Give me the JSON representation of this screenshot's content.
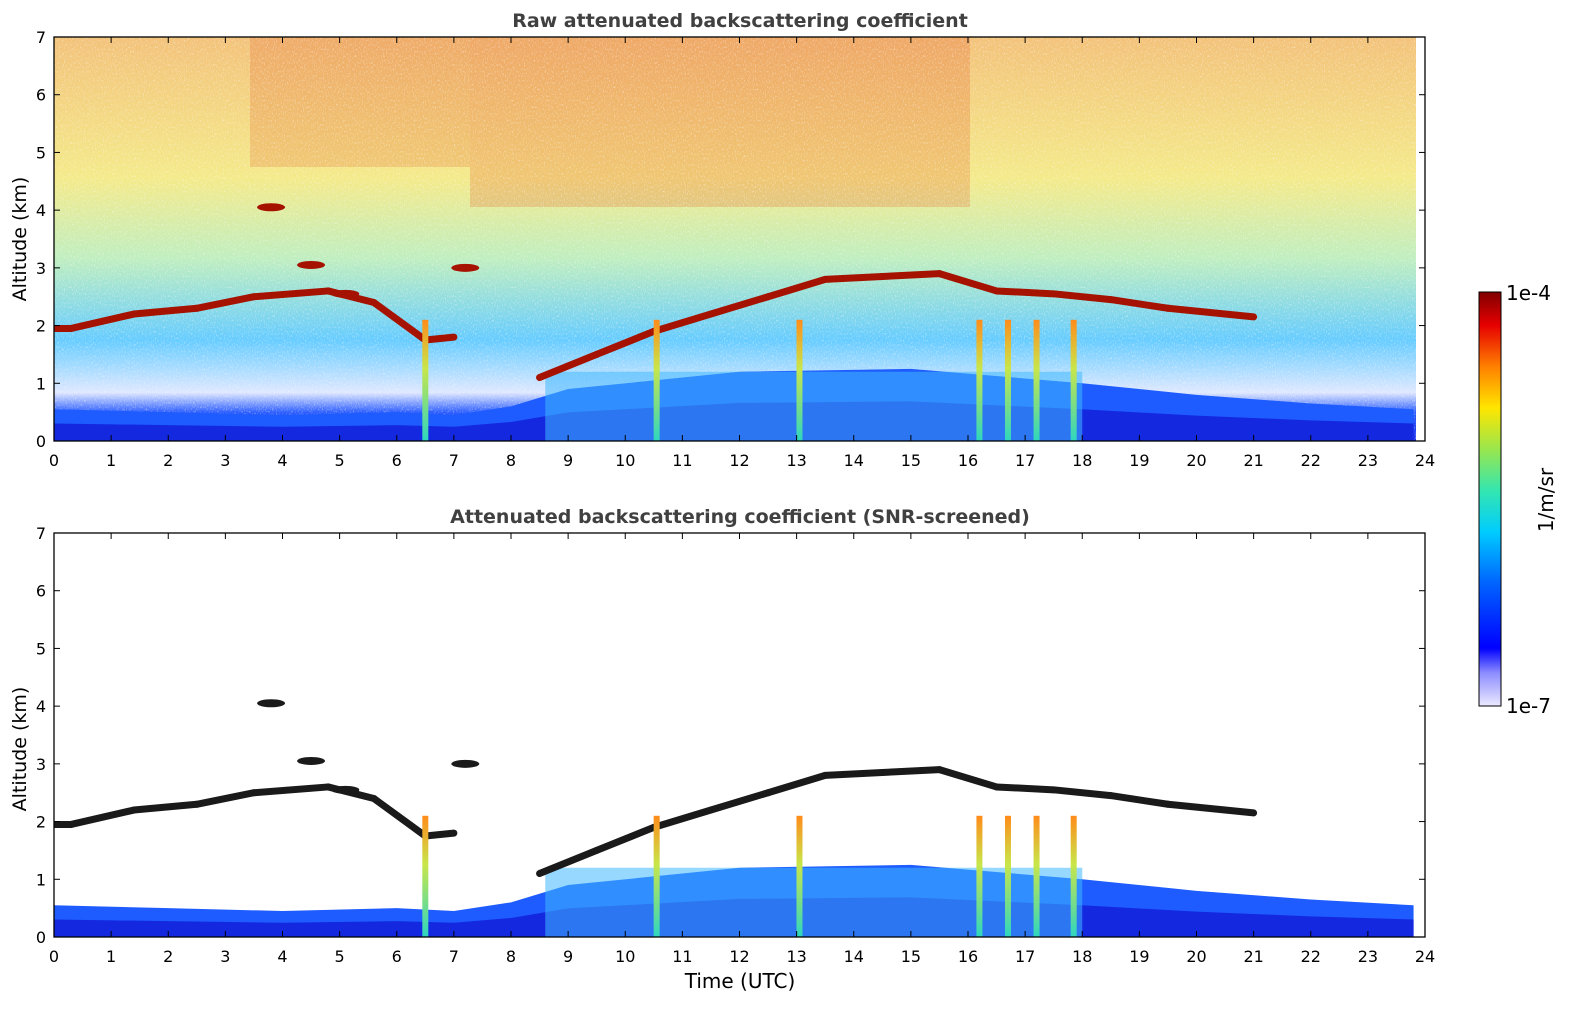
{
  "chart_data": [
    {
      "type": "heatmap",
      "title": "Raw attenuated backscattering coefficient",
      "xlabel": "",
      "ylabel": "Altitude (km)",
      "xlim": [
        0,
        24
      ],
      "ylim": [
        0,
        7
      ],
      "xticks": [
        "0",
        "1",
        "2",
        "3",
        "4",
        "5",
        "6",
        "7",
        "8",
        "9",
        "10",
        "11",
        "12",
        "13",
        "14",
        "15",
        "16",
        "17",
        "18",
        "19",
        "20",
        "21",
        "22",
        "23",
        "24"
      ],
      "yticks": [
        "0",
        "1",
        "2",
        "3",
        "4",
        "5",
        "6",
        "7"
      ],
      "cloud_layer": {
        "time": [
          0,
          0.3,
          1.4,
          2.5,
          3.5,
          4.8,
          5.6,
          6.5,
          7.0,
          8.5,
          9.5,
          10.5,
          11.5,
          12.5,
          13.5,
          14.5,
          15.5,
          16.5,
          17.5,
          18.5,
          19.5,
          20.5,
          21.0
        ],
        "altitude_km": [
          1.95,
          1.95,
          2.2,
          2.3,
          2.5,
          2.6,
          2.4,
          1.75,
          1.8,
          1.1,
          1.5,
          1.9,
          2.2,
          2.5,
          2.8,
          2.85,
          2.9,
          2.6,
          2.55,
          2.45,
          2.3,
          2.2,
          2.15
        ]
      },
      "boundary_layer": {
        "time": [
          0,
          2,
          4,
          6,
          7,
          8,
          9,
          12,
          15,
          18,
          20,
          22,
          23.8
        ],
        "top_km": [
          0.55,
          0.5,
          0.45,
          0.5,
          0.45,
          0.6,
          0.9,
          1.2,
          1.25,
          1.0,
          0.8,
          0.65,
          0.55
        ]
      }
    },
    {
      "type": "heatmap",
      "title": "Attenuated backscattering coefficient (SNR-screened)",
      "xlabel": "Time (UTC)",
      "ylabel": "Altitude (km)",
      "xlim": [
        0,
        24
      ],
      "ylim": [
        0,
        7
      ],
      "xticks": [
        "0",
        "1",
        "2",
        "3",
        "4",
        "5",
        "6",
        "7",
        "8",
        "9",
        "10",
        "11",
        "12",
        "13",
        "14",
        "15",
        "16",
        "17",
        "18",
        "19",
        "20",
        "21",
        "22",
        "23",
        "24"
      ],
      "yticks": [
        "0",
        "1",
        "2",
        "3",
        "4",
        "5",
        "6",
        "7"
      ]
    }
  ],
  "colorbar": {
    "label": "1/m/sr",
    "max_label": "1e-4",
    "min_label": "1e-7",
    "scale": "log",
    "colormap": "jet"
  }
}
